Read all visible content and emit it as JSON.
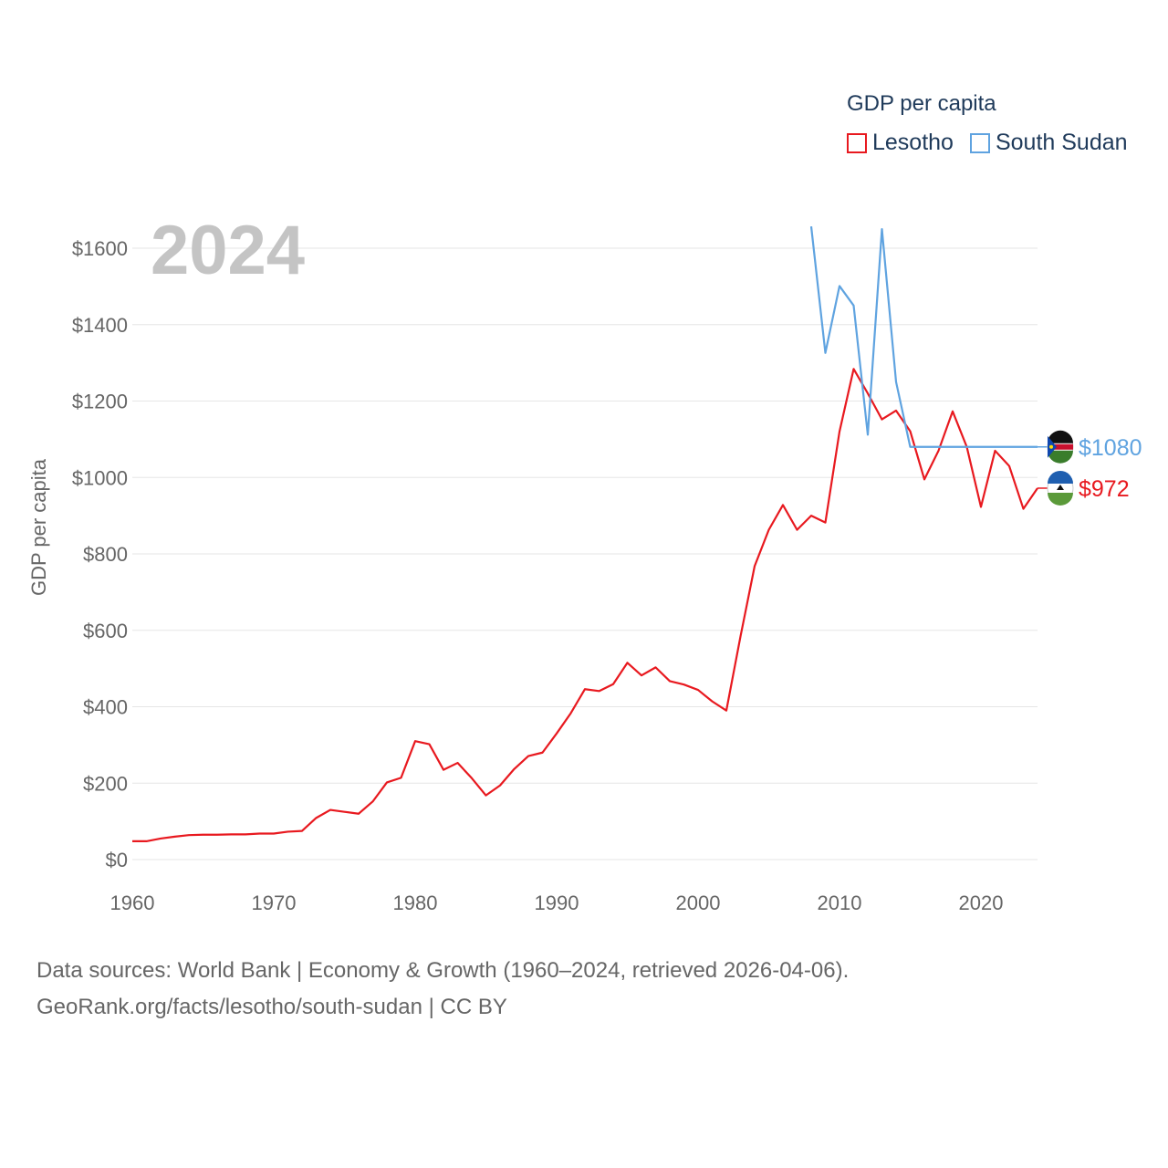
{
  "legend": {
    "title": "GDP per capita",
    "items": [
      {
        "label": "Lesotho",
        "color": "#e8191f"
      },
      {
        "label": "South Sudan",
        "color": "#5fa3e0"
      }
    ]
  },
  "source": {
    "line1": "Data sources: World Bank | Economy & Growth (1960–2024, retrieved 2026-04-06).",
    "line2": "GeoRank.org/facts/lesotho/south-sudan | CC BY"
  },
  "chart_data": {
    "type": "line",
    "title": "GDP per capita",
    "year_label": "2024",
    "ylabel": "GDP per capita",
    "xlabel": "",
    "xlim": [
      1960,
      2024
    ],
    "ylim": [
      0,
      1650
    ],
    "grid": true,
    "legend_position": "top-right",
    "x_ticks": [
      1960,
      1970,
      1980,
      1990,
      2000,
      2010,
      2020
    ],
    "y_ticks": [
      0,
      200,
      400,
      600,
      800,
      1000,
      1200,
      1400,
      1600
    ],
    "y_tick_labels": [
      "$0",
      "$200",
      "$400",
      "$600",
      "$800",
      "$1000",
      "$1200",
      "$1400",
      "$1600"
    ],
    "series": [
      {
        "name": "Lesotho",
        "color": "#e8191f",
        "end_label": "$972",
        "x": [
          1960,
          1961,
          1962,
          1963,
          1964,
          1965,
          1966,
          1967,
          1968,
          1969,
          1970,
          1971,
          1972,
          1973,
          1974,
          1975,
          1976,
          1977,
          1978,
          1979,
          1980,
          1981,
          1982,
          1983,
          1984,
          1985,
          1986,
          1987,
          1988,
          1989,
          1990,
          1991,
          1992,
          1993,
          1994,
          1995,
          1996,
          1997,
          1998,
          1999,
          2000,
          2001,
          2002,
          2003,
          2004,
          2005,
          2006,
          2007,
          2008,
          2009,
          2010,
          2011,
          2012,
          2013,
          2014,
          2015,
          2016,
          2017,
          2018,
          2019,
          2020,
          2021,
          2022,
          2023,
          2024
        ],
        "values": [
          48,
          48,
          55,
          60,
          64,
          65,
          65,
          66,
          66,
          68,
          68,
          73,
          75,
          109,
          130,
          125,
          120,
          152,
          202,
          214,
          310,
          302,
          235,
          253,
          213,
          168,
          194,
          237,
          271,
          280,
          330,
          383,
          446,
          441,
          459,
          515,
          482,
          503,
          467,
          458,
          444,
          414,
          390,
          584,
          768,
          863,
          928,
          863,
          900,
          882,
          1120,
          1284,
          1220,
          1152,
          1175,
          1121,
          995,
          1070,
          1173,
          1080,
          923,
          1070,
          1030,
          918,
          972
        ]
      },
      {
        "name": "South Sudan",
        "color": "#5fa3e0",
        "end_label": "$1080",
        "x": [
          2008,
          2009,
          2010,
          2011,
          2012,
          2013,
          2014,
          2015,
          2016,
          2017,
          2018,
          2019,
          2020,
          2021,
          2022,
          2023,
          2024
        ],
        "values": [
          1657,
          1326,
          1501,
          1450,
          1112,
          1650,
          1250,
          1080,
          1080,
          1080,
          1080,
          1080,
          1080,
          1080,
          1080,
          1080,
          1080
        ]
      }
    ]
  }
}
